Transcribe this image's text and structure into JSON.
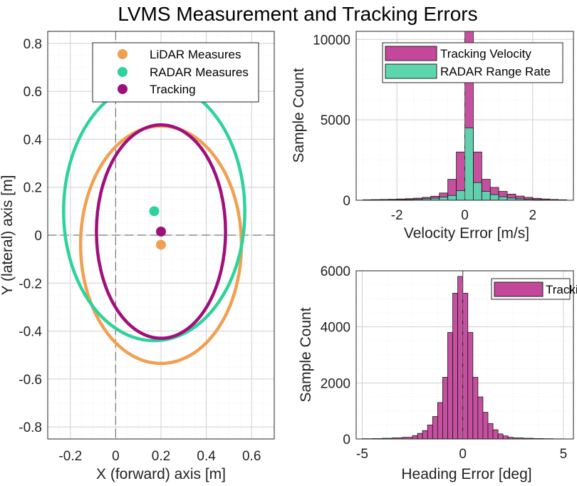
{
  "figure_title": "LVMS Measurement and Tracking Errors",
  "colors": {
    "lidar": "#F0A050",
    "radar": "#2ED39A",
    "tracking": "#A0107A",
    "track_hist": "#C3479A",
    "radar_hist": "#5DD6AE"
  },
  "chart_data": [
    {
      "type": "scatter",
      "title": "",
      "xlabel": "X (forward) axis [m]",
      "ylabel": "Y (lateral) axis [m]",
      "xlim": [
        -0.3,
        0.7
      ],
      "ylim": [
        -0.85,
        0.85
      ],
      "xticks": [
        "-0.2",
        "0",
        "0.2",
        "0.4",
        "0.6"
      ],
      "yticks": [
        "-0.8",
        "-0.6",
        "-0.4",
        "-0.2",
        "0",
        "0.2",
        "0.4",
        "0.6",
        "0.8"
      ],
      "series": [
        {
          "name": "LiDAR Measures",
          "key": "lidar",
          "mean": [
            0.2,
            -0.04
          ],
          "ellipse": {
            "cx": 0.2,
            "cy": -0.04,
            "rx": 0.355,
            "ry": 0.495
          }
        },
        {
          "name": "RADAR Measures",
          "key": "radar",
          "mean": [
            0.17,
            0.1
          ],
          "ellipse": {
            "cx": 0.17,
            "cy": 0.1,
            "rx": 0.4,
            "ry": 0.54
          }
        },
        {
          "name": "Tracking",
          "key": "tracking",
          "mean": [
            0.2,
            0.015
          ],
          "ellipse": {
            "cx": 0.2,
            "cy": 0.015,
            "rx": 0.285,
            "ry": 0.445
          }
        }
      ],
      "legend": [
        "LiDAR Measures",
        "RADAR Measures",
        "Tracking"
      ],
      "legend_position": "top-right"
    },
    {
      "type": "bar",
      "title": "",
      "xlabel": "Velocity Error [m/s]",
      "ylabel": "Sample Count",
      "xlim": [
        -3.2,
        3.2
      ],
      "ylim": [
        0,
        10500
      ],
      "xticks": [
        "-2",
        "0",
        "2"
      ],
      "yticks": [
        "0",
        "5000",
        "10000"
      ],
      "bin_edges": [
        -3.0,
        -2.75,
        -2.5,
        -2.25,
        -2.0,
        -1.75,
        -1.5,
        -1.25,
        -1.0,
        -0.75,
        -0.5,
        -0.25,
        0.0,
        0.25,
        0.5,
        0.75,
        1.0,
        1.25,
        1.5,
        1.75,
        2.0,
        2.25,
        2.5,
        2.75,
        3.0
      ],
      "series": [
        {
          "name": "Tracking Velocity",
          "key": "track_hist",
          "values": [
            30,
            40,
            50,
            60,
            80,
            100,
            130,
            180,
            250,
            450,
            1300,
            3000,
            12000,
            3000,
            1300,
            800,
            550,
            380,
            260,
            180,
            120,
            80,
            50,
            30
          ]
        },
        {
          "name": "RADAR Range Rate",
          "key": "radar_hist",
          "values": [
            5,
            10,
            15,
            20,
            30,
            40,
            60,
            90,
            130,
            200,
            300,
            600,
            4500,
            1100,
            550,
            350,
            220,
            140,
            90,
            60,
            35,
            20,
            10,
            5
          ]
        }
      ],
      "legend": [
        "Tracking Velocity",
        "RADAR Range Rate"
      ],
      "legend_position": "top-right"
    },
    {
      "type": "bar",
      "title": "",
      "xlabel": "Heading Error [deg]",
      "ylabel": "Sample Count",
      "xlim": [
        -5.3,
        5.5
      ],
      "ylim": [
        0,
        6000
      ],
      "xticks": [
        "-5",
        "0",
        "5"
      ],
      "yticks": [
        "0",
        "2000",
        "4000",
        "6000"
      ],
      "bin_edges": [
        -5.0,
        -4.5,
        -4.0,
        -3.5,
        -3.0,
        -2.5,
        -2.25,
        -2.0,
        -1.75,
        -1.5,
        -1.25,
        -1.0,
        -0.75,
        -0.5,
        -0.25,
        0.0,
        0.25,
        0.5,
        0.75,
        1.0,
        1.25,
        1.5,
        1.75,
        2.0,
        2.25,
        2.5,
        3.0,
        3.5,
        4.0,
        4.5,
        5.0
      ],
      "series": [
        {
          "name": "Tracking",
          "key": "track_hist",
          "values": [
            10,
            15,
            25,
            40,
            60,
            120,
            200,
            300,
            500,
            800,
            1300,
            2200,
            3800,
            5200,
            5800,
            5200,
            3800,
            2200,
            1500,
            950,
            550,
            330,
            180,
            110,
            60,
            40,
            25,
            15,
            10,
            5
          ]
        }
      ],
      "legend": [
        "Tracking"
      ],
      "legend_position": "top-right"
    }
  ]
}
